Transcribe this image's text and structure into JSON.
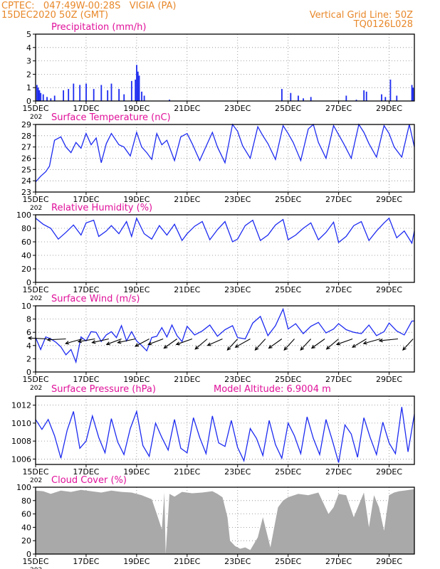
{
  "header": {
    "line1": "CPTEC:   047:49W-00:28S   VIGIA (PA)",
    "line2": "15DEC2020 50Z (GMT)",
    "right1": "Vertical Grid Line: 50Z",
    "right2": "TQ0126L028"
  },
  "colors": {
    "header": "#e8882a",
    "title": "#e0119a",
    "series": "#1d2bf0",
    "cloud": "#a9a9a9",
    "axis": "#000000"
  },
  "x_axis": {
    "tick_labels": [
      "15DEC",
      "17DEC",
      "19DEC",
      "21DEC",
      "23DEC",
      "25DEC",
      "27DEC",
      "29DEC"
    ],
    "tick_days": [
      15,
      17,
      19,
      21,
      23,
      25,
      27,
      29
    ],
    "range_days": [
      15,
      30
    ],
    "year_stub": "202"
  },
  "chart_data": [
    {
      "type": "bar",
      "title": "Precipitation (mm/h)",
      "ylim": [
        0,
        5
      ],
      "yticks": [
        "0",
        "1",
        "2",
        "3",
        "4",
        "5"
      ],
      "x_days": [
        15.05,
        15.1,
        15.15,
        15.2,
        15.3,
        15.45,
        15.6,
        15.75,
        16.1,
        16.3,
        16.5,
        16.75,
        17.0,
        17.3,
        17.6,
        17.85,
        18.0,
        18.3,
        18.5,
        18.8,
        18.95,
        19.0,
        19.05,
        19.1,
        19.2,
        19.3,
        20.3,
        24.75,
        25.1,
        25.4,
        25.6,
        25.9,
        27.3,
        27.7,
        28.0,
        28.1,
        28.7,
        28.85,
        29.05,
        29.3,
        29.9,
        29.95
      ],
      "values": [
        1.2,
        1.0,
        0.8,
        0.6,
        0.5,
        0.3,
        0.2,
        0.4,
        0.8,
        0.9,
        1.3,
        1.2,
        1.3,
        0.9,
        1.2,
        0.8,
        1.3,
        0.9,
        0.5,
        1.5,
        1.6,
        2.7,
        2.2,
        1.9,
        0.7,
        0.4,
        0.1,
        0.9,
        0.6,
        0.4,
        0.2,
        0.3,
        0.4,
        0.1,
        0.8,
        0.7,
        0.5,
        0.3,
        1.6,
        0.4,
        1.2,
        1.0
      ],
      "ylabel": ""
    },
    {
      "type": "line",
      "title": "Surface Temperature (nC)",
      "ylim": [
        23,
        29
      ],
      "yticks": [
        "23",
        "24",
        "25",
        "26",
        "27",
        "28",
        "29"
      ],
      "x": [
        15.0,
        15.2,
        15.4,
        15.55,
        15.75,
        16.0,
        16.2,
        16.4,
        16.6,
        16.8,
        17.0,
        17.2,
        17.4,
        17.6,
        17.8,
        18.0,
        18.3,
        18.5,
        18.75,
        19.0,
        19.2,
        19.4,
        19.6,
        19.8,
        20.0,
        20.2,
        20.5,
        20.75,
        21.0,
        21.2,
        21.5,
        21.8,
        22.0,
        22.2,
        22.5,
        22.8,
        23.0,
        23.2,
        23.5,
        23.8,
        24.0,
        24.2,
        24.5,
        24.8,
        25.0,
        25.2,
        25.5,
        25.8,
        26.0,
        26.2,
        26.5,
        26.8,
        27.0,
        27.2,
        27.5,
        27.8,
        28.0,
        28.2,
        28.5,
        28.8,
        29.0,
        29.2,
        29.5,
        29.8,
        30.0
      ],
      "y": [
        23.9,
        24.4,
        24.8,
        25.3,
        27.6,
        27.9,
        27.0,
        26.5,
        27.4,
        26.9,
        28.2,
        27.2,
        27.8,
        25.6,
        27.3,
        28.2,
        27.2,
        27.0,
        26.2,
        28.3,
        27.0,
        26.5,
        25.9,
        28.2,
        27.2,
        27.6,
        25.8,
        27.9,
        28.2,
        27.3,
        25.8,
        27.3,
        28.3,
        27.0,
        25.6,
        29.0,
        28.4,
        27.1,
        26.0,
        28.8,
        28.0,
        27.3,
        25.9,
        28.9,
        28.2,
        27.4,
        25.8,
        28.6,
        29.0,
        27.4,
        26.0,
        28.9,
        28.1,
        27.3,
        26.0,
        29.0,
        28.3,
        27.3,
        26.1,
        28.9,
        28.2,
        27.0,
        26.1,
        29.0,
        27.0
      ]
    },
    {
      "type": "line",
      "title": "Relative Humidity (%)",
      "ylim": [
        0,
        100
      ],
      "yticks": [
        "0",
        "20",
        "40",
        "60",
        "80",
        "100"
      ],
      "x": [
        15.0,
        15.3,
        15.6,
        15.9,
        16.2,
        16.5,
        16.8,
        17.0,
        17.3,
        17.5,
        17.8,
        18.0,
        18.3,
        18.6,
        18.8,
        19.0,
        19.3,
        19.6,
        19.9,
        20.2,
        20.5,
        20.8,
        21.0,
        21.3,
        21.6,
        21.9,
        22.2,
        22.5,
        22.8,
        23.0,
        23.3,
        23.6,
        23.9,
        24.2,
        24.5,
        24.8,
        25.0,
        25.3,
        25.6,
        25.9,
        26.2,
        26.5,
        26.8,
        27.0,
        27.3,
        27.6,
        27.9,
        28.2,
        28.5,
        28.8,
        29.0,
        29.3,
        29.6,
        29.9,
        30.0
      ],
      "y": [
        95,
        86,
        80,
        64,
        74,
        85,
        70,
        88,
        92,
        68,
        76,
        84,
        72,
        90,
        68,
        95,
        72,
        64,
        84,
        70,
        86,
        62,
        72,
        83,
        90,
        63,
        78,
        90,
        60,
        64,
        84,
        92,
        62,
        70,
        85,
        93,
        63,
        70,
        80,
        88,
        63,
        74,
        89,
        59,
        68,
        84,
        90,
        62,
        76,
        88,
        95,
        66,
        76,
        58,
        76
      ]
    },
    {
      "type": "line",
      "title": "Surface Wind (m/s)",
      "ylim": [
        0,
        10
      ],
      "yticks": [
        "0",
        "2",
        "4",
        "6",
        "8",
        "10"
      ],
      "x": [
        15.0,
        15.2,
        15.4,
        15.6,
        15.8,
        16.0,
        16.2,
        16.4,
        16.6,
        16.8,
        17.0,
        17.2,
        17.4,
        17.6,
        17.8,
        18.0,
        18.2,
        18.4,
        18.6,
        18.8,
        19.0,
        19.2,
        19.4,
        19.6,
        19.8,
        20.0,
        20.2,
        20.4,
        20.6,
        20.8,
        21.0,
        21.3,
        21.6,
        21.9,
        22.2,
        22.5,
        22.8,
        23.0,
        23.3,
        23.6,
        23.9,
        24.2,
        24.5,
        24.8,
        25.0,
        25.3,
        25.6,
        25.9,
        26.2,
        26.5,
        26.8,
        27.0,
        27.3,
        27.6,
        27.9,
        28.2,
        28.5,
        28.8,
        29.0,
        29.3,
        29.6,
        29.9,
        30.0
      ],
      "y": [
        5.2,
        3.4,
        5.3,
        5.0,
        4.5,
        3.8,
        2.6,
        3.4,
        1.5,
        5.3,
        4.7,
        6.1,
        6.0,
        4.6,
        5.6,
        6.1,
        5.2,
        7.0,
        4.7,
        6.1,
        4.7,
        4.0,
        3.2,
        5.2,
        5.4,
        6.7,
        5.3,
        7.1,
        5.5,
        4.6,
        6.9,
        5.6,
        6.2,
        7.1,
        5.4,
        6.4,
        7.0,
        5.2,
        5.0,
        7.4,
        8.4,
        5.5,
        7.0,
        9.5,
        6.5,
        7.3,
        5.8,
        6.9,
        7.5,
        5.9,
        6.5,
        7.3,
        6.4,
        6.0,
        5.8,
        7.1,
        5.5,
        6.1,
        7.4,
        6.2,
        5.6,
        7.7,
        7.7
      ],
      "arrows": {
        "x_days": [
          15.45,
          16.2,
          16.85,
          17.35,
          17.9,
          18.4,
          18.95,
          19.5,
          20.05,
          20.6,
          21.2,
          21.8,
          22.4,
          23.0,
          23.5,
          24.1,
          24.75,
          25.25,
          25.9,
          26.45,
          27.0,
          27.55,
          28.1,
          28.65,
          29.35,
          29.95
        ],
        "u": [
          -1,
          -1,
          -0.9,
          -0.9,
          -0.9,
          -0.8,
          -0.95,
          -0.75,
          -0.8,
          -0.7,
          -0.85,
          -0.65,
          -0.8,
          -0.55,
          -0.8,
          -0.55,
          -0.7,
          -0.55,
          -0.55,
          -0.7,
          -0.65,
          -0.85,
          -0.75,
          -0.9,
          -1,
          -0.55
        ],
        "v": [
          0.05,
          -0.05,
          -0.25,
          -0.15,
          -0.2,
          -0.3,
          -0.2,
          -0.4,
          -0.3,
          -0.5,
          -0.3,
          -0.55,
          -0.35,
          -0.6,
          -0.45,
          -0.6,
          -0.5,
          -0.6,
          -0.6,
          -0.5,
          -0.55,
          -0.3,
          -0.45,
          -0.25,
          -0.1,
          -0.6
        ]
      }
    },
    {
      "type": "line",
      "title": "Surface Pressure (hPa)",
      "annotation": "Model Altitude: 6.9004 m",
      "ylim": [
        1005.4,
        1013.0
      ],
      "yticks": [
        "1006",
        "1008",
        "1010",
        "1012"
      ],
      "ytick_values": [
        1006,
        1008,
        1010,
        1012
      ],
      "x": [
        15.0,
        15.25,
        15.5,
        15.75,
        16.0,
        16.25,
        16.5,
        16.75,
        17.0,
        17.25,
        17.5,
        17.75,
        18.0,
        18.25,
        18.5,
        18.75,
        19.0,
        19.25,
        19.5,
        19.75,
        20.0,
        20.25,
        20.5,
        20.75,
        21.0,
        21.25,
        21.5,
        21.75,
        22.0,
        22.25,
        22.5,
        22.75,
        23.0,
        23.25,
        23.5,
        23.75,
        24.0,
        24.25,
        24.5,
        24.75,
        25.0,
        25.25,
        25.5,
        25.75,
        26.0,
        26.25,
        26.5,
        26.75,
        27.0,
        27.25,
        27.5,
        27.75,
        28.0,
        28.25,
        28.5,
        28.75,
        29.0,
        29.25,
        29.5,
        29.75,
        30.0
      ],
      "y": [
        1010.4,
        1009.3,
        1010.4,
        1008.6,
        1006.1,
        1009.2,
        1011.3,
        1007.2,
        1008.0,
        1010.8,
        1008.4,
        1006.7,
        1010.5,
        1007.9,
        1006.5,
        1009.4,
        1011.3,
        1007.5,
        1006.3,
        1010.0,
        1008.4,
        1007.0,
        1010.4,
        1007.2,
        1006.7,
        1010.6,
        1008.4,
        1006.6,
        1010.8,
        1007.8,
        1007.4,
        1010.3,
        1007.3,
        1005.8,
        1009.4,
        1008.3,
        1006.4,
        1010.3,
        1007.6,
        1006.1,
        1010.0,
        1008.6,
        1006.6,
        1010.7,
        1008.3,
        1006.5,
        1010.4,
        1008.1,
        1005.6,
        1009.8,
        1008.8,
        1006.2,
        1010.6,
        1008.4,
        1006.5,
        1010.1,
        1007.8,
        1006.6,
        1011.8,
        1006.8,
        1011.0
      ]
    },
    {
      "type": "area",
      "title": "Cloud Cover (%)",
      "ylim": [
        0,
        100
      ],
      "yticks": [
        "0",
        "20",
        "40",
        "60",
        "80",
        "100"
      ],
      "x": [
        15.0,
        15.3,
        15.6,
        16.0,
        16.4,
        16.8,
        17.2,
        17.6,
        18.0,
        18.4,
        18.8,
        19.2,
        19.6,
        19.8,
        20.0,
        20.1,
        20.15,
        20.3,
        20.5,
        20.8,
        21.2,
        21.6,
        22.0,
        22.2,
        22.4,
        22.6,
        22.7,
        22.9,
        23.1,
        23.3,
        23.5,
        23.8,
        24.0,
        24.3,
        24.6,
        24.8,
        25.0,
        25.4,
        25.8,
        26.2,
        26.6,
        26.8,
        27.0,
        27.3,
        27.6,
        28.0,
        28.2,
        28.4,
        28.6,
        28.8,
        29.0,
        29.2,
        29.4,
        29.6,
        30.0
      ],
      "y": [
        95,
        94,
        90,
        95,
        93,
        96,
        94,
        92,
        95,
        93,
        92,
        88,
        82,
        60,
        37,
        92,
        0,
        90,
        86,
        93,
        91,
        92,
        94,
        90,
        85,
        55,
        20,
        12,
        8,
        10,
        6,
        25,
        55,
        10,
        70,
        80,
        85,
        90,
        88,
        92,
        60,
        70,
        90,
        88,
        55,
        92,
        40,
        88,
        70,
        35,
        88,
        92,
        94,
        95,
        97
      ]
    }
  ]
}
